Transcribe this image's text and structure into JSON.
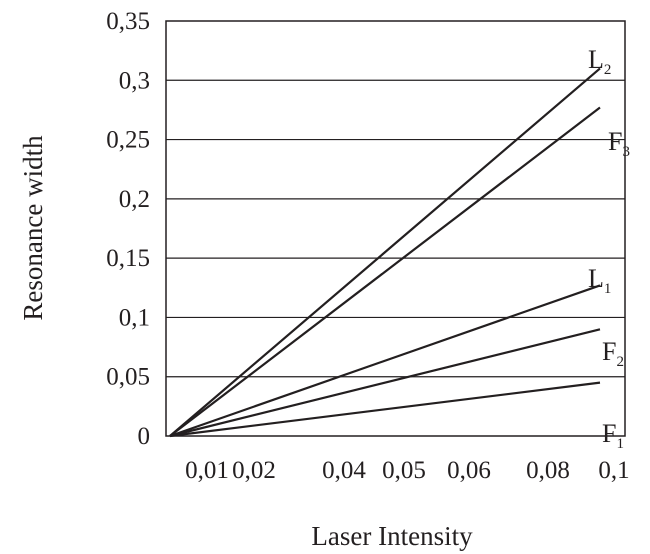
{
  "chart_data": {
    "type": "line",
    "title": "",
    "xlabel": "Laser Intensity",
    "ylabel": "Resonance  width",
    "x_tick_labels": [
      "0,01",
      "0,02",
      "0,04",
      "0,05",
      "0,06",
      "0,08",
      "0,1"
    ],
    "y_ticks": [
      0,
      0.05,
      0.1,
      0.15,
      0.2,
      0.25,
      0.3,
      0.35
    ],
    "y_tick_labels": [
      "0",
      "0,05",
      "0,1",
      "0,15",
      "0,2",
      "0,25",
      "0,3",
      "0,35"
    ],
    "ylim": [
      0,
      0.35
    ],
    "grid": "horizontal",
    "line_color": "#231f20",
    "series": [
      {
        "name": "L",
        "subscript": "2",
        "x": [
          "0,01",
          "0,1"
        ],
        "values": [
          0,
          0.31
        ]
      },
      {
        "name": "F",
        "subscript": "3",
        "x": [
          "0,01",
          "0,1"
        ],
        "values": [
          0,
          0.277
        ]
      },
      {
        "name": "L",
        "subscript": "1",
        "x": [
          "0,01",
          "0,1"
        ],
        "values": [
          0,
          0.127
        ]
      },
      {
        "name": "F",
        "subscript": "2",
        "x": [
          "0,01",
          "0,1"
        ],
        "values": [
          0,
          0.09
        ]
      },
      {
        "name": "F",
        "subscript": "1",
        "x": [
          "0,01",
          "0,1"
        ],
        "values": [
          0,
          0.045
        ]
      }
    ]
  }
}
